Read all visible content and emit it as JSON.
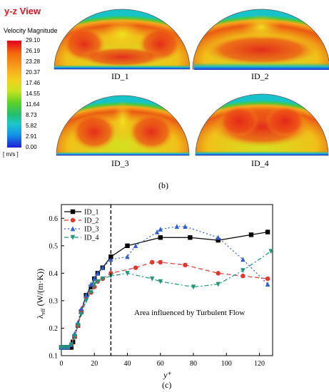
{
  "figure_b": {
    "view_title": "y-z View",
    "colorbar_title": "Velocity Magnitude",
    "colorbar_ticks": [
      "29.10",
      "26.19",
      "23.28",
      "20.37",
      "17.46",
      "14.55",
      "11.64",
      "8.73",
      "5.82",
      "2.91",
      "0.00"
    ],
    "unit": "[ m/s ]",
    "panels": [
      "ID_1",
      "ID_2",
      "ID_3",
      "ID_4"
    ],
    "caption": "(b)"
  },
  "figure_c": {
    "caption": "(c)",
    "annotation": "Area influenced by Turbulent Flow"
  },
  "chart_data": {
    "type": "line",
    "xlabel": "y⁺",
    "ylabel": "λeff (W/(m·K))",
    "xlim": [
      0,
      128
    ],
    "ylim": [
      0.1,
      0.65
    ],
    "xticks": [
      0,
      20,
      40,
      60,
      80,
      100,
      120
    ],
    "yticks": [
      0.1,
      0.2,
      0.3,
      0.4,
      0.5,
      0.6
    ],
    "vertical_line_x": 30,
    "legend_position": "top-left",
    "series": [
      {
        "name": "ID_1",
        "color": "#000000",
        "marker": "square",
        "dash": "solid",
        "x": [
          0,
          1,
          2,
          3,
          4,
          5,
          6,
          7,
          8,
          10,
          12,
          15,
          18,
          20,
          22,
          25,
          30,
          40,
          60,
          78,
          95,
          115,
          125
        ],
        "y": [
          0.13,
          0.13,
          0.13,
          0.13,
          0.13,
          0.13,
          0.13,
          0.15,
          0.17,
          0.21,
          0.26,
          0.32,
          0.35,
          0.38,
          0.4,
          0.42,
          0.46,
          0.5,
          0.53,
          0.53,
          0.52,
          0.54,
          0.55
        ]
      },
      {
        "name": "ID_2",
        "color": "#e8342b",
        "marker": "circle",
        "dash": "6,4",
        "x": [
          0,
          2,
          4,
          6,
          8,
          10,
          12,
          15,
          18,
          20,
          22,
          25,
          30,
          45,
          55,
          60,
          75,
          95,
          110,
          125
        ],
        "y": [
          0.13,
          0.13,
          0.13,
          0.14,
          0.17,
          0.21,
          0.26,
          0.31,
          0.33,
          0.35,
          0.37,
          0.38,
          0.4,
          0.42,
          0.44,
          0.44,
          0.43,
          0.4,
          0.39,
          0.38
        ]
      },
      {
        "name": "ID_3",
        "color": "#2d5fd8",
        "marker": "triangle",
        "dash": "2,3",
        "x": [
          0,
          2,
          4,
          6,
          8,
          10,
          12,
          15,
          18,
          20,
          22,
          25,
          30,
          40,
          45,
          58,
          60,
          70,
          75,
          95,
          110,
          125
        ],
        "y": [
          0.13,
          0.13,
          0.13,
          0.14,
          0.18,
          0.22,
          0.27,
          0.32,
          0.36,
          0.38,
          0.4,
          0.42,
          0.45,
          0.46,
          0.5,
          0.55,
          0.56,
          0.57,
          0.57,
          0.53,
          0.45,
          0.36
        ]
      },
      {
        "name": "ID_4",
        "color": "#1b9a7a",
        "marker": "triangle-down",
        "dash": "6,3,2,3",
        "x": [
          0,
          2,
          4,
          6,
          8,
          10,
          12,
          15,
          18,
          20,
          22,
          25,
          30,
          40,
          55,
          60,
          80,
          95,
          110,
          127
        ],
        "y": [
          0.13,
          0.13,
          0.13,
          0.14,
          0.17,
          0.21,
          0.25,
          0.3,
          0.33,
          0.36,
          0.37,
          0.38,
          0.39,
          0.4,
          0.38,
          0.37,
          0.35,
          0.36,
          0.41,
          0.48
        ]
      }
    ]
  }
}
